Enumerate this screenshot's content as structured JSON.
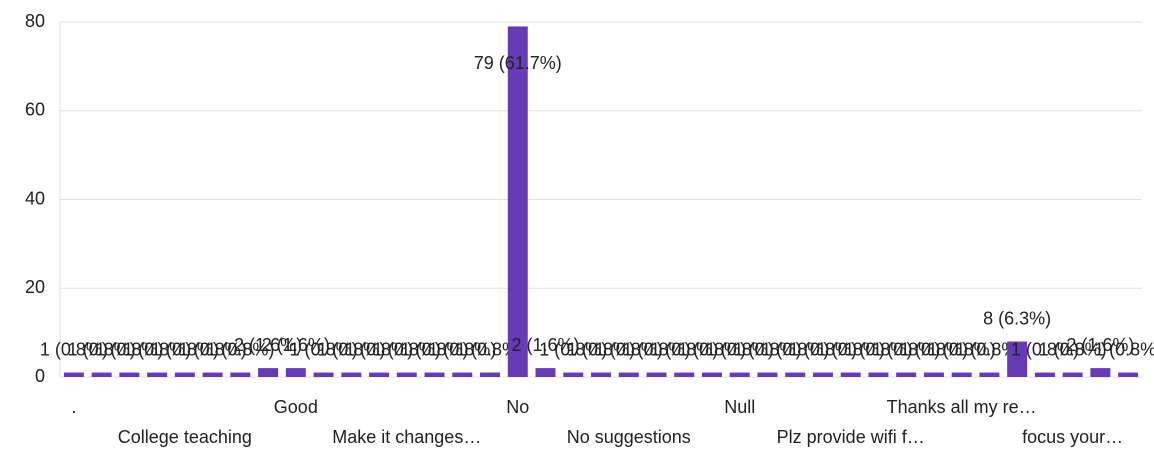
{
  "chart_data": {
    "type": "bar",
    "color": "#673ab7",
    "grid": true,
    "ylim": [
      0,
      80
    ],
    "yticks": [
      0,
      20,
      40,
      60,
      80
    ],
    "categories": [
      ".",
      null,
      null,
      null,
      "College teaching",
      null,
      null,
      null,
      "Good",
      null,
      null,
      null,
      "Make it changes…",
      null,
      null,
      null,
      "No",
      null,
      null,
      null,
      "No suggestions",
      null,
      null,
      null,
      "Null",
      null,
      null,
      null,
      "Plz provide wifi f…",
      null,
      null,
      null,
      "Thanks all my re…",
      null,
      null,
      null,
      "focus your…",
      null,
      null
    ],
    "values": [
      1,
      1,
      1,
      1,
      1,
      1,
      1,
      2,
      2,
      1,
      1,
      1,
      1,
      1,
      1,
      1,
      79,
      2,
      1,
      1,
      1,
      1,
      1,
      1,
      1,
      1,
      1,
      1,
      1,
      1,
      1,
      1,
      1,
      1,
      8,
      1,
      1,
      2,
      1
    ],
    "value_labels": [
      "1 (0.8%)",
      "1 (0.8%)",
      "1 (0.8%)",
      "1 (0.8%)",
      "1 (0.8%)",
      "1 (0.8%)",
      "1 (0.8%)",
      "2 (1.6%)",
      "2 (1.6%)",
      "1 (0.8%)",
      "1 (0.8%)",
      "1 (0.8%)",
      "1 (0.8%)",
      "1 (0.8%)",
      "1 (0.8%)",
      "1 (0.8%)",
      "79 (61.7%)",
      "2 (1.6%)",
      "1 (0.8%)",
      "1 (0.8%)",
      "1 (0.8%)",
      "1 (0.8%)",
      "1 (0.8%)",
      "1 (0.8%)",
      "1 (0.8%)",
      "1 (0.8%)",
      "1 (0.8%)",
      "1 (0.8%)",
      "1 (0.8%)",
      "1 (0.8%)",
      "1 (0.8%)",
      "1 (0.8%)",
      "1 (0.8%)",
      "1 (0.8%)",
      "8 (6.3%)",
      "1 (0.8%)",
      "1 (0.8%)",
      "2 (1.6%)",
      "1 (0.8%)"
    ]
  }
}
